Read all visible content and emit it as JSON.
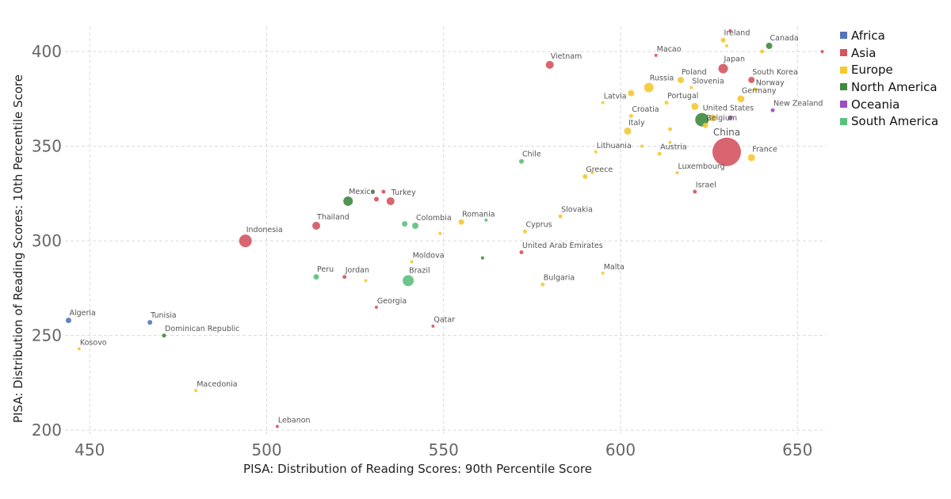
{
  "chart_data": {
    "type": "scatter",
    "xlabel": "PISA: Distribution of Reading Scores: 90th Percentile Score",
    "ylabel": "PISA: Distribution of Reading Scores: 10th Percentile Score",
    "xlim": [
      443,
      658
    ],
    "ylim": [
      198,
      413
    ],
    "xticks": [
      450,
      500,
      550,
      600,
      650
    ],
    "yticks": [
      200,
      250,
      300,
      350,
      400
    ],
    "grid": true,
    "legend_position": "top-right",
    "colors": {
      "Africa": "#5574ba",
      "Asia": "#d4545f",
      "Europe": "#f5c931",
      "North America": "#3f8a3f",
      "Oceania": "#9b4dc2",
      "South America": "#5cc07d"
    },
    "legend": [
      "Africa",
      "Asia",
      "Europe",
      "North America",
      "Oceania",
      "South America"
    ],
    "points": [
      {
        "label": "Algeria",
        "x": 444,
        "y": 258,
        "group": "Africa",
        "size": 3.5
      },
      {
        "label": "Tunisia",
        "x": 467,
        "y": 257,
        "group": "Africa",
        "size": 3
      },
      {
        "label": "Kosovo",
        "x": 447,
        "y": 243,
        "group": "Europe",
        "size": 2
      },
      {
        "label": "Dominican Republic",
        "x": 471,
        "y": 250,
        "group": "North America",
        "size": 2.5
      },
      {
        "label": "Macedonia",
        "x": 480,
        "y": 221,
        "group": "Europe",
        "size": 2
      },
      {
        "label": "Lebanon",
        "x": 503,
        "y": 202,
        "group": "Asia",
        "size": 2
      },
      {
        "label": "Indonesia",
        "x": 494,
        "y": 300,
        "group": "Asia",
        "size": 8
      },
      {
        "label": "Thailand",
        "x": 514,
        "y": 308,
        "group": "Asia",
        "size": 5
      },
      {
        "label": "Peru",
        "x": 514,
        "y": 281,
        "group": "South America",
        "size": 3.5
      },
      {
        "label": "Jordan",
        "x": 522,
        "y": 281,
        "group": "Asia",
        "size": 2.5
      },
      {
        "label": "",
        "x": 528,
        "y": 279,
        "group": "Europe",
        "size": 2
      },
      {
        "label": "Mexico",
        "x": 523,
        "y": 321,
        "group": "North America",
        "size": 6
      },
      {
        "label": "",
        "x": 530,
        "y": 326,
        "group": "North America",
        "size": 2
      },
      {
        "label": "",
        "x": 531,
        "y": 322,
        "group": "Asia",
        "size": 3
      },
      {
        "label": "Turkey",
        "x": 535,
        "y": 321,
        "group": "Asia",
        "size": 5
      },
      {
        "label": "",
        "x": 533,
        "y": 326,
        "group": "Asia",
        "size": 2.5
      },
      {
        "label": "Georgia",
        "x": 531,
        "y": 265,
        "group": "Asia",
        "size": 2
      },
      {
        "label": "Brazil",
        "x": 540,
        "y": 279,
        "group": "South America",
        "size": 7
      },
      {
        "label": "",
        "x": 539,
        "y": 309,
        "group": "South America",
        "size": 3.5
      },
      {
        "label": "Colombia",
        "x": 542,
        "y": 308,
        "group": "South America",
        "size": 4
      },
      {
        "label": "Moldova",
        "x": 541,
        "y": 289,
        "group": "Europe",
        "size": 2
      },
      {
        "label": "",
        "x": 549,
        "y": 304,
        "group": "Europe",
        "size": 2
      },
      {
        "label": "Qatar",
        "x": 547,
        "y": 255,
        "group": "Asia",
        "size": 2
      },
      {
        "label": "Romania",
        "x": 555,
        "y": 310,
        "group": "Europe",
        "size": 3.5
      },
      {
        "label": "",
        "x": 562,
        "y": 311,
        "group": "South America",
        "size": 2
      },
      {
        "label": "",
        "x": 561,
        "y": 291,
        "group": "North America",
        "size": 2
      },
      {
        "label": "Chile",
        "x": 572,
        "y": 342,
        "group": "South America",
        "size": 3
      },
      {
        "label": "Cyprus",
        "x": 573,
        "y": 305,
        "group": "Europe",
        "size": 2.5
      },
      {
        "label": "United Arab Emirates",
        "x": 572,
        "y": 294,
        "group": "Asia",
        "size": 2.5
      },
      {
        "label": "Bulgaria",
        "x": 578,
        "y": 277,
        "group": "Europe",
        "size": 2.5
      },
      {
        "label": "Slovakia",
        "x": 583,
        "y": 313,
        "group": "Europe",
        "size": 2.5
      },
      {
        "label": "Vietnam",
        "x": 580,
        "y": 393,
        "group": "Asia",
        "size": 5
      },
      {
        "label": "Greece",
        "x": 590,
        "y": 334,
        "group": "Europe",
        "size": 3
      },
      {
        "label": "",
        "x": 592,
        "y": 336,
        "group": "Europe",
        "size": 2
      },
      {
        "label": "Lithuania",
        "x": 593,
        "y": 347,
        "group": "Europe",
        "size": 2
      },
      {
        "label": "Malta",
        "x": 595,
        "y": 283,
        "group": "Europe",
        "size": 2
      },
      {
        "label": "Latvia",
        "x": 595,
        "y": 373,
        "group": "Europe",
        "size": 2
      },
      {
        "label": "Italy",
        "x": 602,
        "y": 358,
        "group": "Europe",
        "size": 4.5
      },
      {
        "label": "Croatia",
        "x": 603,
        "y": 366,
        "group": "Europe",
        "size": 2.5
      },
      {
        "label": "",
        "x": 603,
        "y": 378,
        "group": "Europe",
        "size": 4
      },
      {
        "label": "",
        "x": 606,
        "y": 350,
        "group": "Europe",
        "size": 2
      },
      {
        "label": "Russia",
        "x": 608,
        "y": 381,
        "group": "Europe",
        "size": 6
      },
      {
        "label": "Macao",
        "x": 610,
        "y": 398,
        "group": "Asia",
        "size": 2
      },
      {
        "label": "Austria",
        "x": 611,
        "y": 346,
        "group": "Europe",
        "size": 2.5
      },
      {
        "label": "Portugal",
        "x": 613,
        "y": 373,
        "group": "Europe",
        "size": 2.5
      },
      {
        "label": "",
        "x": 614,
        "y": 359,
        "group": "Europe",
        "size": 2.5
      },
      {
        "label": "",
        "x": 614,
        "y": 352,
        "group": "Europe",
        "size": 2
      },
      {
        "label": "Luxembourg",
        "x": 616,
        "y": 336,
        "group": "Europe",
        "size": 2
      },
      {
        "label": "Poland",
        "x": 617,
        "y": 385,
        "group": "Europe",
        "size": 4
      },
      {
        "label": "Slovenia",
        "x": 620,
        "y": 381,
        "group": "Europe",
        "size": 2
      },
      {
        "label": "",
        "x": 621,
        "y": 371,
        "group": "Europe",
        "size": 4.5
      },
      {
        "label": "Israel",
        "x": 621,
        "y": 326,
        "group": "Asia",
        "size": 2.5
      },
      {
        "label": "Belgium",
        "x": 624,
        "y": 361,
        "group": "Europe",
        "size": 3.5
      },
      {
        "label": "United States",
        "x": 623,
        "y": 364,
        "group": "North America",
        "size": 8.5
      },
      {
        "label": "",
        "x": 626,
        "y": 365,
        "group": "Europe",
        "size": 4.5
      },
      {
        "label": "Japan",
        "x": 629,
        "y": 391,
        "group": "Asia",
        "size": 6
      },
      {
        "label": "China",
        "x": 630,
        "y": 347,
        "group": "Asia",
        "size": 18
      },
      {
        "label": "Ireland",
        "x": 629,
        "y": 406,
        "group": "Europe",
        "size": 3
      },
      {
        "label": "",
        "x": 631,
        "y": 411,
        "group": "Asia",
        "size": 2
      },
      {
        "label": "",
        "x": 630,
        "y": 403,
        "group": "Europe",
        "size": 2
      },
      {
        "label": "",
        "x": 631,
        "y": 365,
        "group": "Oceania",
        "size": 3
      },
      {
        "label": "Germany",
        "x": 634,
        "y": 375,
        "group": "Europe",
        "size": 4.5
      },
      {
        "label": "France",
        "x": 637,
        "y": 344,
        "group": "Europe",
        "size": 4.5
      },
      {
        "label": "South Korea",
        "x": 637,
        "y": 385,
        "group": "Asia",
        "size": 4
      },
      {
        "label": "Norway",
        "x": 638,
        "y": 380,
        "group": "Europe",
        "size": 2.5
      },
      {
        "label": "",
        "x": 640,
        "y": 400,
        "group": "Europe",
        "size": 2.5
      },
      {
        "label": "Canada",
        "x": 642,
        "y": 403,
        "group": "North America",
        "size": 4
      },
      {
        "label": "New Zealand",
        "x": 643,
        "y": 369,
        "group": "Oceania",
        "size": 2.5
      },
      {
        "label": "",
        "x": 657,
        "y": 400,
        "group": "Asia",
        "size": 2
      }
    ]
  }
}
